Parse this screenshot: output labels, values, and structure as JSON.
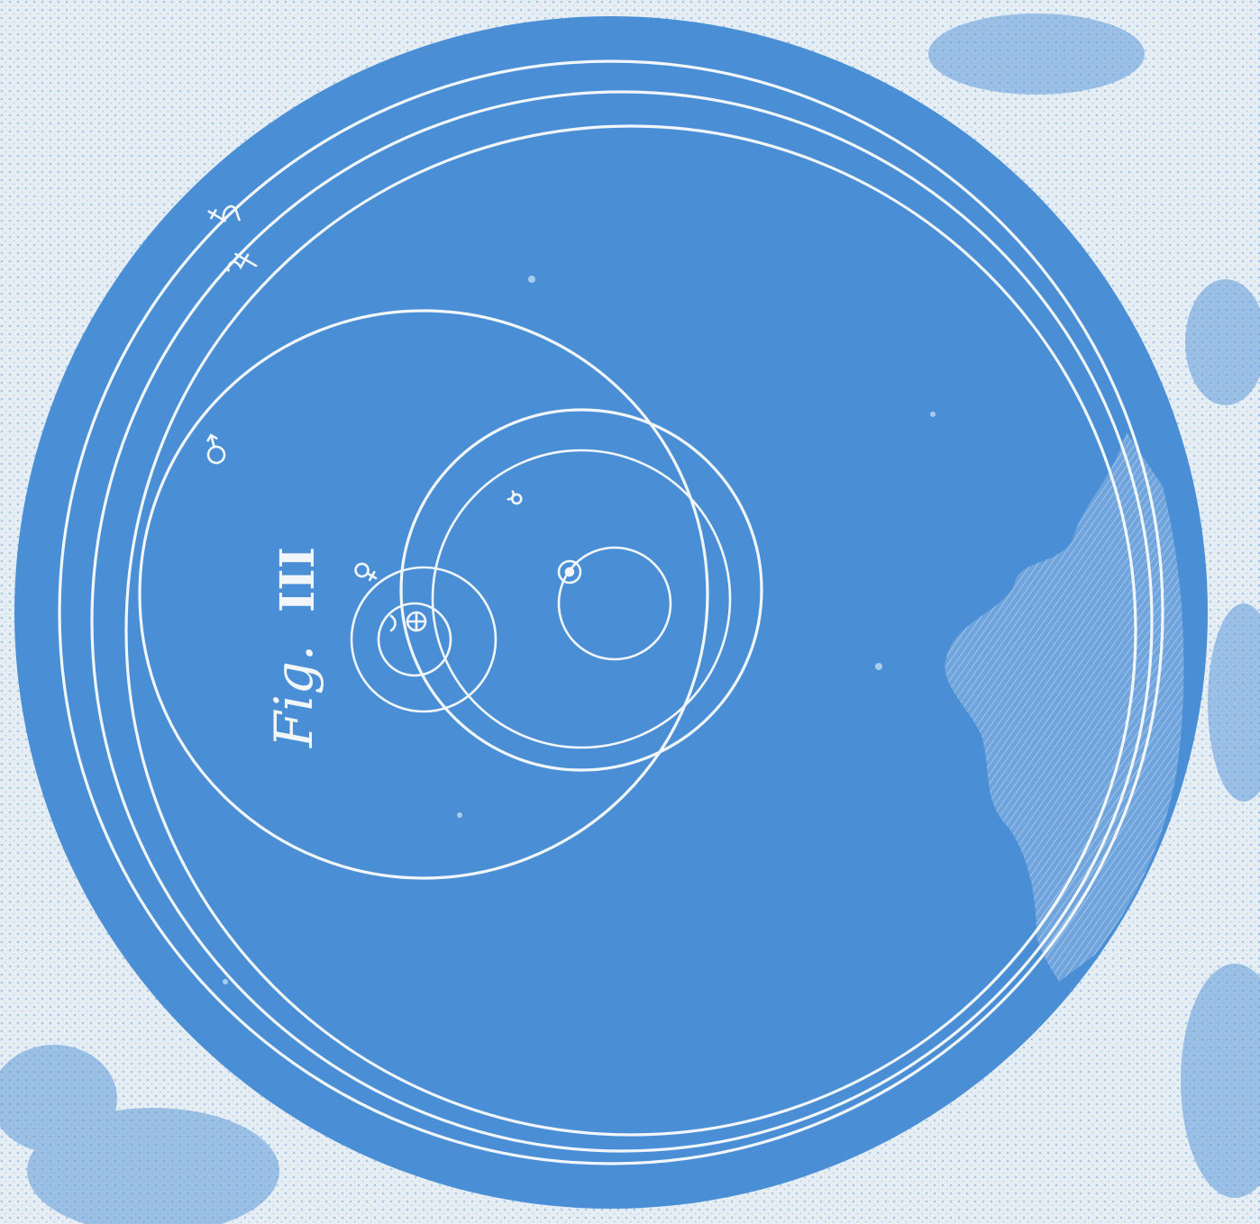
{
  "figure": {
    "label_script": "Fig.",
    "label_numeral": "III"
  },
  "colors": {
    "paper": "#e6eef4",
    "ink_blue": "#4a8fd6",
    "line_white": "#f1f6fb"
  },
  "symbols": [
    {
      "name": "saturn-symbol"
    },
    {
      "name": "jupiter-symbol"
    },
    {
      "name": "mars-symbol"
    },
    {
      "name": "venus-symbol"
    },
    {
      "name": "mercury-symbol"
    },
    {
      "name": "moon-symbol"
    },
    {
      "name": "earth-symbol"
    }
  ]
}
